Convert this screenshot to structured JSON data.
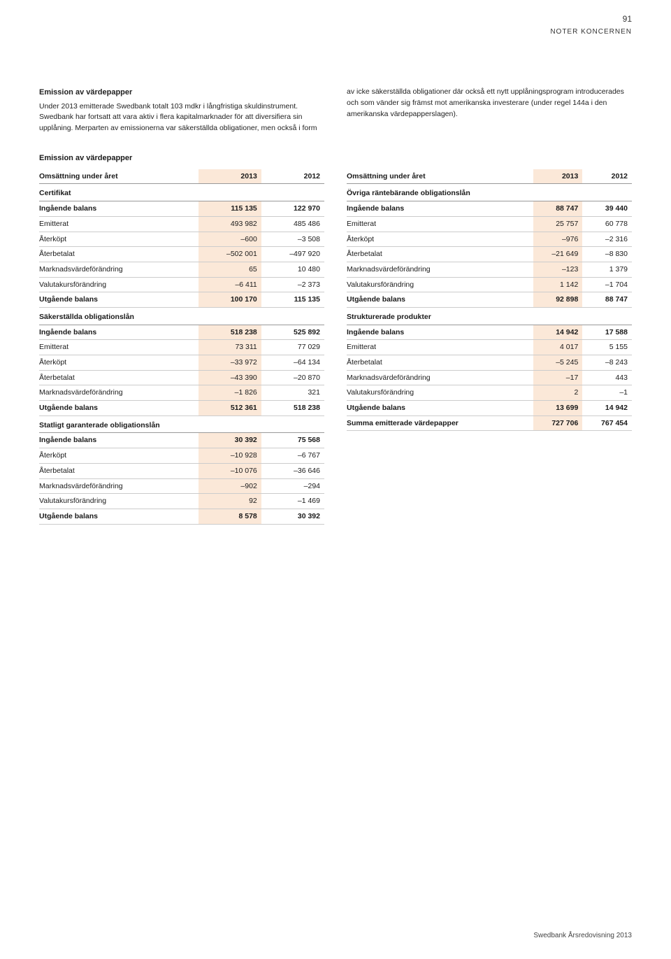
{
  "pageNumber": "91",
  "sectionLabel": "NOTER KONCERNEN",
  "intro": {
    "heading": "Emission av värdepapper",
    "leftText": "Under 2013 emitterade Swedbank totalt 103 mdkr i långfristiga skuldinstrument. Swedbank har fortsatt att vara aktiv i flera kapitalmarknader för att diversifiera sin upplåning. Merparten av emissionerna var säkerställda obligationer, men också i form",
    "rightText": "av icke säkerställda obligationer där också ett nytt upplåningsprogram introducerades och som vänder sig främst mot amerikanska investerare (under regel 144a i den amerikanska värdepapperslagen)."
  },
  "tableSubtitle": "Emission av värdepapper",
  "colHeaders": {
    "label": "Omsättning under året",
    "c1": "2013",
    "c2": "2012"
  },
  "leftTable": [
    {
      "type": "section",
      "label": "Certifikat"
    },
    {
      "type": "bold",
      "label": "Ingående balans",
      "c1": "115 135",
      "c2": "122 970"
    },
    {
      "label": "Emitterat",
      "c1": "493 982",
      "c2": "485 486"
    },
    {
      "label": "Återköpt",
      "c1": "–600",
      "c2": "–3 508"
    },
    {
      "label": "Återbetalat",
      "c1": "–502 001",
      "c2": "–497 920"
    },
    {
      "label": "Marknadsvärdeförändring",
      "c1": "65",
      "c2": "10 480"
    },
    {
      "label": "Valutakursförändring",
      "c1": "–6 411",
      "c2": "–2 373"
    },
    {
      "type": "bold",
      "label": "Utgående balans",
      "c1": "100 170",
      "c2": "115 135"
    },
    {
      "type": "section",
      "label": "Säkerställda obligationslån"
    },
    {
      "type": "bold",
      "label": "Ingående balans",
      "c1": "518 238",
      "c2": "525 892"
    },
    {
      "label": "Emitterat",
      "c1": "73 311",
      "c2": "77 029"
    },
    {
      "label": "Återköpt",
      "c1": "–33 972",
      "c2": "–64 134"
    },
    {
      "label": "Återbetalat",
      "c1": "–43 390",
      "c2": "–20 870"
    },
    {
      "label": "Marknadsvärdeförändring",
      "c1": "–1 826",
      "c2": "321"
    },
    {
      "type": "bold",
      "label": "Utgående balans",
      "c1": "512 361",
      "c2": "518 238"
    },
    {
      "type": "section",
      "label": "Statligt garanterade obligationslån"
    },
    {
      "type": "bold",
      "label": "Ingående balans",
      "c1": "30 392",
      "c2": "75 568"
    },
    {
      "label": "Återköpt",
      "c1": "–10 928",
      "c2": "–6 767"
    },
    {
      "label": "Återbetalat",
      "c1": "–10 076",
      "c2": "–36 646"
    },
    {
      "label": "Marknadsvärdeförändring",
      "c1": "–902",
      "c2": "–294"
    },
    {
      "label": "Valutakursförändring",
      "c1": "92",
      "c2": "–1 469"
    },
    {
      "type": "bold",
      "label": "Utgående balans",
      "c1": "8 578",
      "c2": "30 392"
    }
  ],
  "rightTable": [
    {
      "type": "section",
      "label": "Övriga räntebärande obligationslån"
    },
    {
      "type": "bold",
      "label": "Ingående balans",
      "c1": "88 747",
      "c2": "39 440"
    },
    {
      "label": "Emitterat",
      "c1": "25 757",
      "c2": "60 778"
    },
    {
      "label": "Återköpt",
      "c1": "–976",
      "c2": "–2 316"
    },
    {
      "label": "Återbetalat",
      "c1": "–21 649",
      "c2": "–8 830"
    },
    {
      "label": "Marknadsvärdeförändring",
      "c1": "–123",
      "c2": "1 379"
    },
    {
      "label": "Valutakursförändring",
      "c1": "1 142",
      "c2": "–1 704"
    },
    {
      "type": "bold",
      "label": "Utgående balans",
      "c1": "92 898",
      "c2": "88 747"
    },
    {
      "type": "section",
      "label": "Strukturerade produkter"
    },
    {
      "type": "bold",
      "label": "Ingående balans",
      "c1": "14 942",
      "c2": "17 588"
    },
    {
      "label": "Emitterat",
      "c1": "4 017",
      "c2": "5 155"
    },
    {
      "label": "Återbetalat",
      "c1": "–5 245",
      "c2": "–8 243"
    },
    {
      "label": "Marknadsvärdeförändring",
      "c1": "–17",
      "c2": "443"
    },
    {
      "label": "Valutakursförändring",
      "c1": "2",
      "c2": "–1"
    },
    {
      "type": "bold",
      "label": "Utgående balans",
      "c1": "13 699",
      "c2": "14 942"
    },
    {
      "type": "bold",
      "label": "Summa emitterade värdepapper",
      "c1": "727 706",
      "c2": "767 454"
    }
  ],
  "footer": "Swedbank Årsredovisning 2013"
}
